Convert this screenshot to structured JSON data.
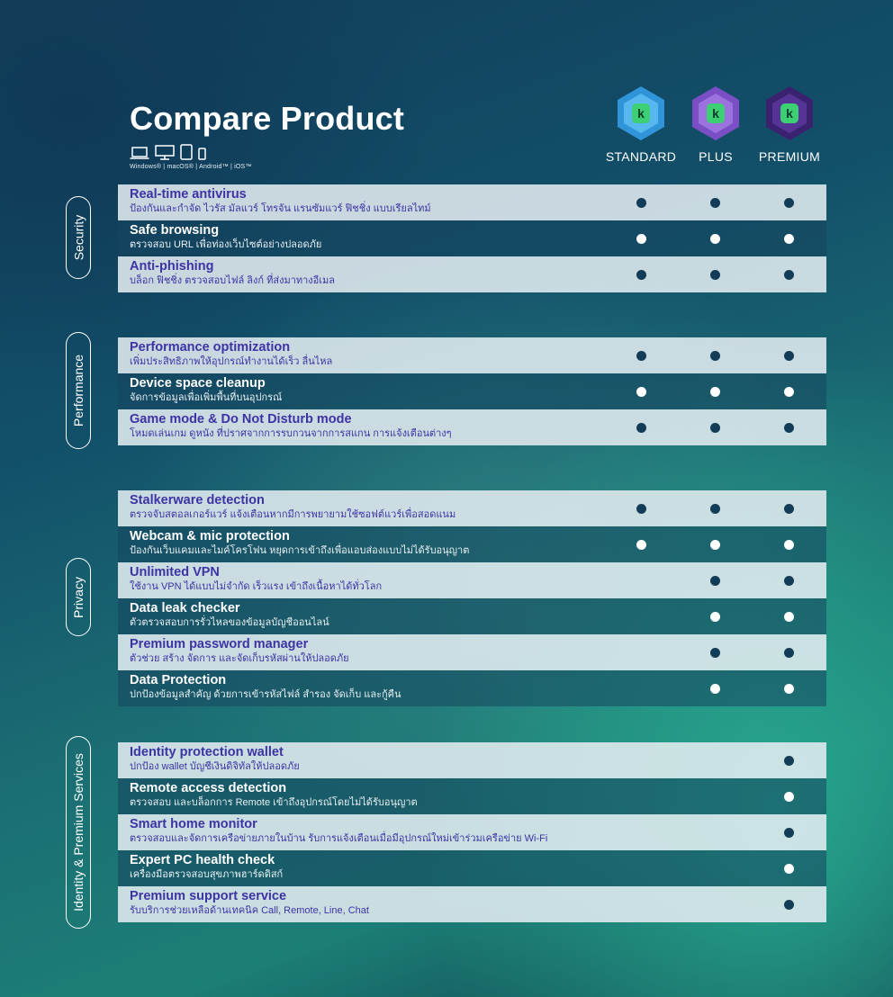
{
  "title": "Compare Product",
  "platforms": "Windows® | macOS® | Android™ | iOS™",
  "plans": [
    "STANDARD",
    "PLUS",
    "PREMIUM"
  ],
  "colors": {
    "standard_badge": "#2f95d8",
    "plus_badge": "#7a4ec4",
    "premium_badge": "#3b2270",
    "badge_k": "#3ccf74",
    "light_row_text": "#3d33a4",
    "dot_dark": "#123c57"
  },
  "sections": [
    {
      "label": "Security",
      "rows": [
        {
          "name": "Real-time antivirus",
          "desc": "ป้องกันและกำจัด ไวรัส มัลแวร์ โทรจัน แรนซัมแวร์ ฟิชชิ่ง แบบเรียลไทม์",
          "plans": [
            true,
            true,
            true
          ]
        },
        {
          "name": "Safe browsing",
          "desc": "ตรวจสอบ URL เพื่อท่องเว็บไซต์อย่างปลอดภัย",
          "plans": [
            true,
            true,
            true
          ]
        },
        {
          "name": "Anti-phishing",
          "desc": "บล็อก ฟิชชิ่ง ตรวจสอบไฟล์ ลิงก์ ที่ส่งมาทางอีเมล",
          "plans": [
            true,
            true,
            true
          ]
        }
      ]
    },
    {
      "label": "Performance",
      "rows": [
        {
          "name": "Performance optimization",
          "desc": "เพิ่มประสิทธิภาพให้อุปกรณ์ทำงานได้เร็ว ลื่นไหล",
          "plans": [
            true,
            true,
            true
          ]
        },
        {
          "name": "Device space cleanup",
          "desc": "จัดการข้อมูลเพื่อเพิ่มพื้นที่บนอุปกรณ์",
          "plans": [
            true,
            true,
            true
          ]
        },
        {
          "name": "Game mode & Do Not Disturb mode",
          "desc": "โหมดเล่นเกม ดูหนัง ที่ปราศจากการรบกวนจากการสแกน การแจ้งเตือนต่างๆ",
          "plans": [
            true,
            true,
            true
          ]
        }
      ]
    },
    {
      "label": "Privacy",
      "rows": [
        {
          "name": "Stalkerware detection",
          "desc": "ตรวจจับสตอลเกอร์แวร์ แจ้งเตือนหากมีการพยายามใช้ซอฟต์แวร์เพื่อสอดแนม",
          "plans": [
            true,
            true,
            true
          ]
        },
        {
          "name": "Webcam & mic protection",
          "desc": "ป้องกันเว็บแคมและไมค์โครโฟน หยุดการเข้าถึงเพื่อแอบส่องแบบไม่ได้รับอนุญาต",
          "plans": [
            true,
            true,
            true
          ]
        },
        {
          "name": "Unlimited VPN",
          "desc": "ใช้งาน VPN ได้แบบไม่จำกัด เร็วแรง เข้าถึงเนื้อหาได้ทั่วโลก",
          "plans": [
            false,
            true,
            true
          ]
        },
        {
          "name": "Data leak checker",
          "desc": "ตัวตรวจสอบการรั่วไหลของข้อมูลบัญชีออนไลน์",
          "plans": [
            false,
            true,
            true
          ]
        },
        {
          "name": "Premium password manager",
          "desc": "ตัวช่วย สร้าง จัดการ และจัดเก็บรหัสผ่านให้ปลอดภัย",
          "plans": [
            false,
            true,
            true
          ]
        },
        {
          "name": "Data Protection",
          "desc": "ปกป้องข้อมูลสำคัญ ด้วยการเข้ารหัสไฟล์ สำรอง จัดเก็บ และกู้คืน",
          "plans": [
            false,
            true,
            true
          ]
        }
      ]
    },
    {
      "label": "Identity & Premium Services",
      "rows": [
        {
          "name": "Identity protection wallet",
          "desc": "ปกป้อง wallet บัญชีเงินดิจิทัลให้ปลอดภัย",
          "plans": [
            false,
            false,
            true
          ]
        },
        {
          "name": "Remote access  detection",
          "desc": "ตรวจสอบ และบล็อกการ Remote เข้าถึงอุปกรณ์โดยไม่ได้รับอนุญาต",
          "plans": [
            false,
            false,
            true
          ]
        },
        {
          "name": "Smart home monitor",
          "desc": "ตรวจสอบและจัดการเครือข่ายภายในบ้าน รับการแจ้งเตือนเมื่อมีอุปกรณ์ใหม่เข้าร่วมเครือข่าย Wi-Fi",
          "plans": [
            false,
            false,
            true
          ]
        },
        {
          "name": "Expert PC health check",
          "desc": "เครื่องมือตรวจสอบสุขภาพฮาร์ดดิสก์",
          "plans": [
            false,
            false,
            true
          ]
        },
        {
          "name": "Premium support service",
          "desc": "รับบริการช่วยเหลือด้านเทคนิค Call, Remote, Line, Chat",
          "plans": [
            false,
            false,
            true
          ]
        }
      ]
    }
  ]
}
